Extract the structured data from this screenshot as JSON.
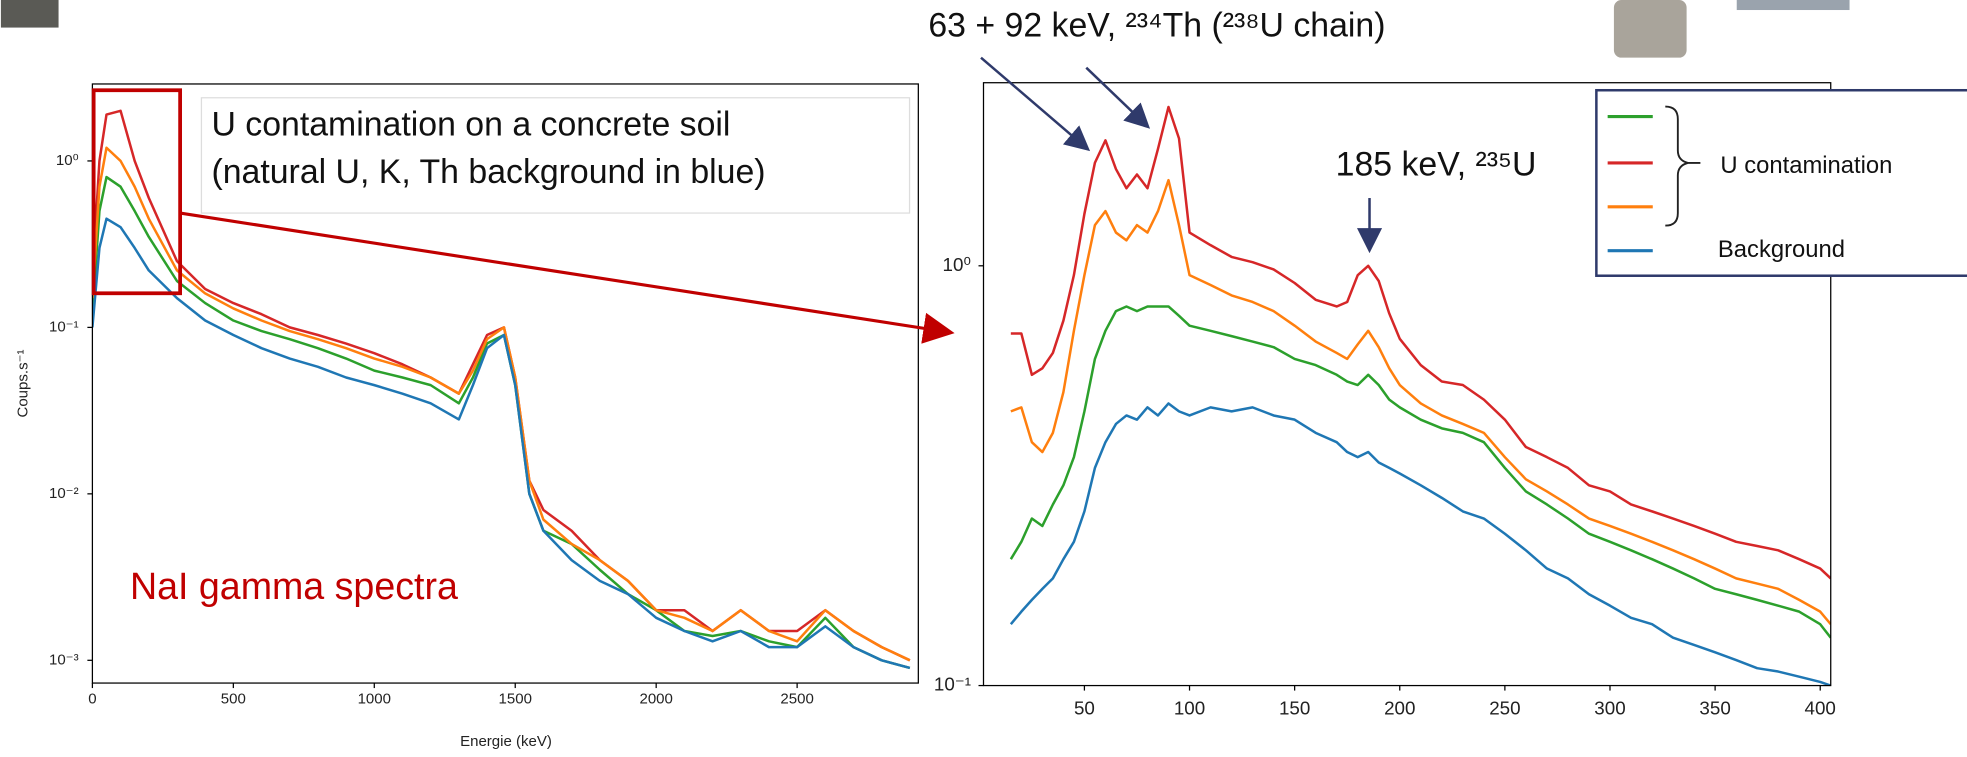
{
  "chart_data": [
    {
      "type": "line",
      "ylabel": "Coups.s⁻¹",
      "xlabel": "Energie (keV)",
      "annotations": [
        "U contamination on a concrete soil",
        "(natural U, K, Th background in blue)",
        "NaI gamma spectra"
      ],
      "log_y": true,
      "grid": false,
      "xlim": [
        0,
        2930
      ],
      "ylim": [
        0.00073,
        2.9
      ],
      "xticks": [
        0,
        500,
        1000,
        1500,
        2000,
        2500
      ],
      "yticks": [
        {
          "value": 0.001,
          "label": "10⁻³"
        },
        {
          "value": 0.01,
          "label": "10⁻²"
        },
        {
          "value": 0.1,
          "label": "10⁻¹"
        },
        {
          "value": 1,
          "label": "10⁰"
        }
      ],
      "x": [
        0,
        25,
        50,
        100,
        150,
        200,
        300,
        400,
        500,
        600,
        700,
        800,
        900,
        1000,
        1100,
        1200,
        1300,
        1350,
        1400,
        1460,
        1500,
        1550,
        1600,
        1700,
        1800,
        1900,
        2000,
        2100,
        2200,
        2300,
        2400,
        2500,
        2600,
        2700,
        2800,
        2900
      ],
      "series": [
        {
          "color": "#d62728",
          "values": [
            0.2,
            1.0,
            1.9,
            2.0,
            1.0,
            0.6,
            0.25,
            0.17,
            0.14,
            0.12,
            0.1,
            0.09,
            0.08,
            0.07,
            0.06,
            0.05,
            0.04,
            0.06,
            0.09,
            0.1,
            0.05,
            0.012,
            0.008,
            0.006,
            0.004,
            0.003,
            0.002,
            0.002,
            0.0015,
            0.002,
            0.0015,
            0.0015,
            0.002,
            0.0015,
            0.0012,
            0.001
          ]
        },
        {
          "color": "#2ca02c",
          "values": [
            0.12,
            0.5,
            0.8,
            0.7,
            0.5,
            0.35,
            0.19,
            0.14,
            0.11,
            0.095,
            0.085,
            0.075,
            0.065,
            0.055,
            0.05,
            0.045,
            0.035,
            0.05,
            0.08,
            0.09,
            0.045,
            0.01,
            0.006,
            0.005,
            0.0035,
            0.0025,
            0.002,
            0.0015,
            0.0014,
            0.0015,
            0.0013,
            0.0012,
            0.0018,
            0.0012,
            0.001,
            0.0009
          ]
        },
        {
          "color": "#ff7f0e",
          "values": [
            0.15,
            0.7,
            1.2,
            1.0,
            0.7,
            0.45,
            0.22,
            0.16,
            0.13,
            0.11,
            0.095,
            0.085,
            0.075,
            0.065,
            0.058,
            0.05,
            0.04,
            0.055,
            0.085,
            0.1,
            0.05,
            0.012,
            0.007,
            0.005,
            0.004,
            0.003,
            0.002,
            0.0018,
            0.0015,
            0.002,
            0.0015,
            0.0013,
            0.002,
            0.0015,
            0.0012,
            0.001
          ]
        },
        {
          "color": "#1f77b4",
          "values": [
            0.1,
            0.3,
            0.45,
            0.4,
            0.3,
            0.22,
            0.15,
            0.11,
            0.09,
            0.075,
            0.065,
            0.058,
            0.05,
            0.045,
            0.04,
            0.035,
            0.028,
            0.045,
            0.075,
            0.09,
            0.045,
            0.01,
            0.006,
            0.004,
            0.003,
            0.0025,
            0.0018,
            0.0015,
            0.0013,
            0.0015,
            0.0012,
            0.0012,
            0.0016,
            0.0012,
            0.001,
            0.0009
          ]
        }
      ]
    },
    {
      "type": "line",
      "annotations": [
        "63 + 92 keV, ²³⁴Th (²³⁸U chain)",
        "185 keV, ²³⁵U"
      ],
      "legend_group_label": "U contamination",
      "log_y": true,
      "grid": false,
      "xlim": [
        2,
        405
      ],
      "ylim": [
        0.1,
        2.73
      ],
      "xticks": [
        50,
        100,
        150,
        200,
        250,
        300,
        350,
        400
      ],
      "yticks": [
        {
          "value": 0.1,
          "label": "10⁻¹"
        },
        {
          "value": 1,
          "label": "10⁰"
        }
      ],
      "x": [
        15,
        20,
        25,
        30,
        35,
        40,
        45,
        50,
        55,
        60,
        65,
        70,
        75,
        80,
        85,
        90,
        95,
        100,
        110,
        120,
        130,
        140,
        150,
        160,
        170,
        175,
        180,
        185,
        190,
        195,
        200,
        210,
        220,
        230,
        240,
        250,
        260,
        270,
        280,
        290,
        300,
        310,
        320,
        330,
        340,
        350,
        360,
        370,
        380,
        390,
        400,
        405
      ],
      "series": [
        {
          "color": "#2ca02c",
          "values": [
            0.2,
            0.22,
            0.25,
            0.24,
            0.27,
            0.3,
            0.35,
            0.45,
            0.6,
            0.7,
            0.78,
            0.8,
            0.78,
            0.8,
            0.8,
            0.8,
            0.76,
            0.72,
            0.7,
            0.68,
            0.66,
            0.64,
            0.6,
            0.58,
            0.55,
            0.53,
            0.52,
            0.55,
            0.52,
            0.48,
            0.46,
            0.43,
            0.41,
            0.4,
            0.38,
            0.33,
            0.29,
            0.27,
            0.25,
            0.23,
            0.22,
            0.21,
            0.2,
            0.19,
            0.18,
            0.17,
            0.165,
            0.16,
            0.155,
            0.15,
            0.14,
            0.13
          ]
        },
        {
          "color": "#d62728",
          "values": [
            0.69,
            0.69,
            0.55,
            0.57,
            0.62,
            0.74,
            0.95,
            1.33,
            1.76,
            1.99,
            1.7,
            1.53,
            1.65,
            1.53,
            1.9,
            2.39,
            2.01,
            1.2,
            1.12,
            1.05,
            1.02,
            0.98,
            0.91,
            0.83,
            0.8,
            0.82,
            0.95,
            1.0,
            0.92,
            0.77,
            0.67,
            0.58,
            0.53,
            0.52,
            0.48,
            0.43,
            0.37,
            0.35,
            0.33,
            0.3,
            0.29,
            0.27,
            0.26,
            0.25,
            0.24,
            0.23,
            0.22,
            0.215,
            0.21,
            0.2,
            0.19,
            0.18
          ]
        },
        {
          "color": "#ff7f0e",
          "values": [
            0.45,
            0.46,
            0.38,
            0.36,
            0.4,
            0.5,
            0.7,
            0.95,
            1.25,
            1.35,
            1.2,
            1.15,
            1.25,
            1.2,
            1.35,
            1.6,
            1.25,
            0.95,
            0.9,
            0.85,
            0.82,
            0.78,
            0.72,
            0.66,
            0.62,
            0.6,
            0.65,
            0.7,
            0.64,
            0.57,
            0.52,
            0.47,
            0.44,
            0.42,
            0.4,
            0.35,
            0.31,
            0.29,
            0.27,
            0.25,
            0.24,
            0.23,
            0.22,
            0.21,
            0.2,
            0.19,
            0.18,
            0.175,
            0.17,
            0.16,
            0.15,
            0.14
          ]
        },
        {
          "name": "Background",
          "color": "#1f77b4",
          "values": [
            0.14,
            0.15,
            0.16,
            0.17,
            0.18,
            0.2,
            0.22,
            0.26,
            0.33,
            0.38,
            0.42,
            0.44,
            0.43,
            0.46,
            0.44,
            0.47,
            0.45,
            0.44,
            0.46,
            0.45,
            0.46,
            0.44,
            0.43,
            0.4,
            0.38,
            0.36,
            0.35,
            0.36,
            0.34,
            0.33,
            0.32,
            0.3,
            0.28,
            0.26,
            0.25,
            0.23,
            0.21,
            0.19,
            0.18,
            0.165,
            0.155,
            0.145,
            0.14,
            0.13,
            0.125,
            0.12,
            0.115,
            0.11,
            0.108,
            0.105,
            0.102,
            0.1
          ]
        }
      ]
    }
  ]
}
